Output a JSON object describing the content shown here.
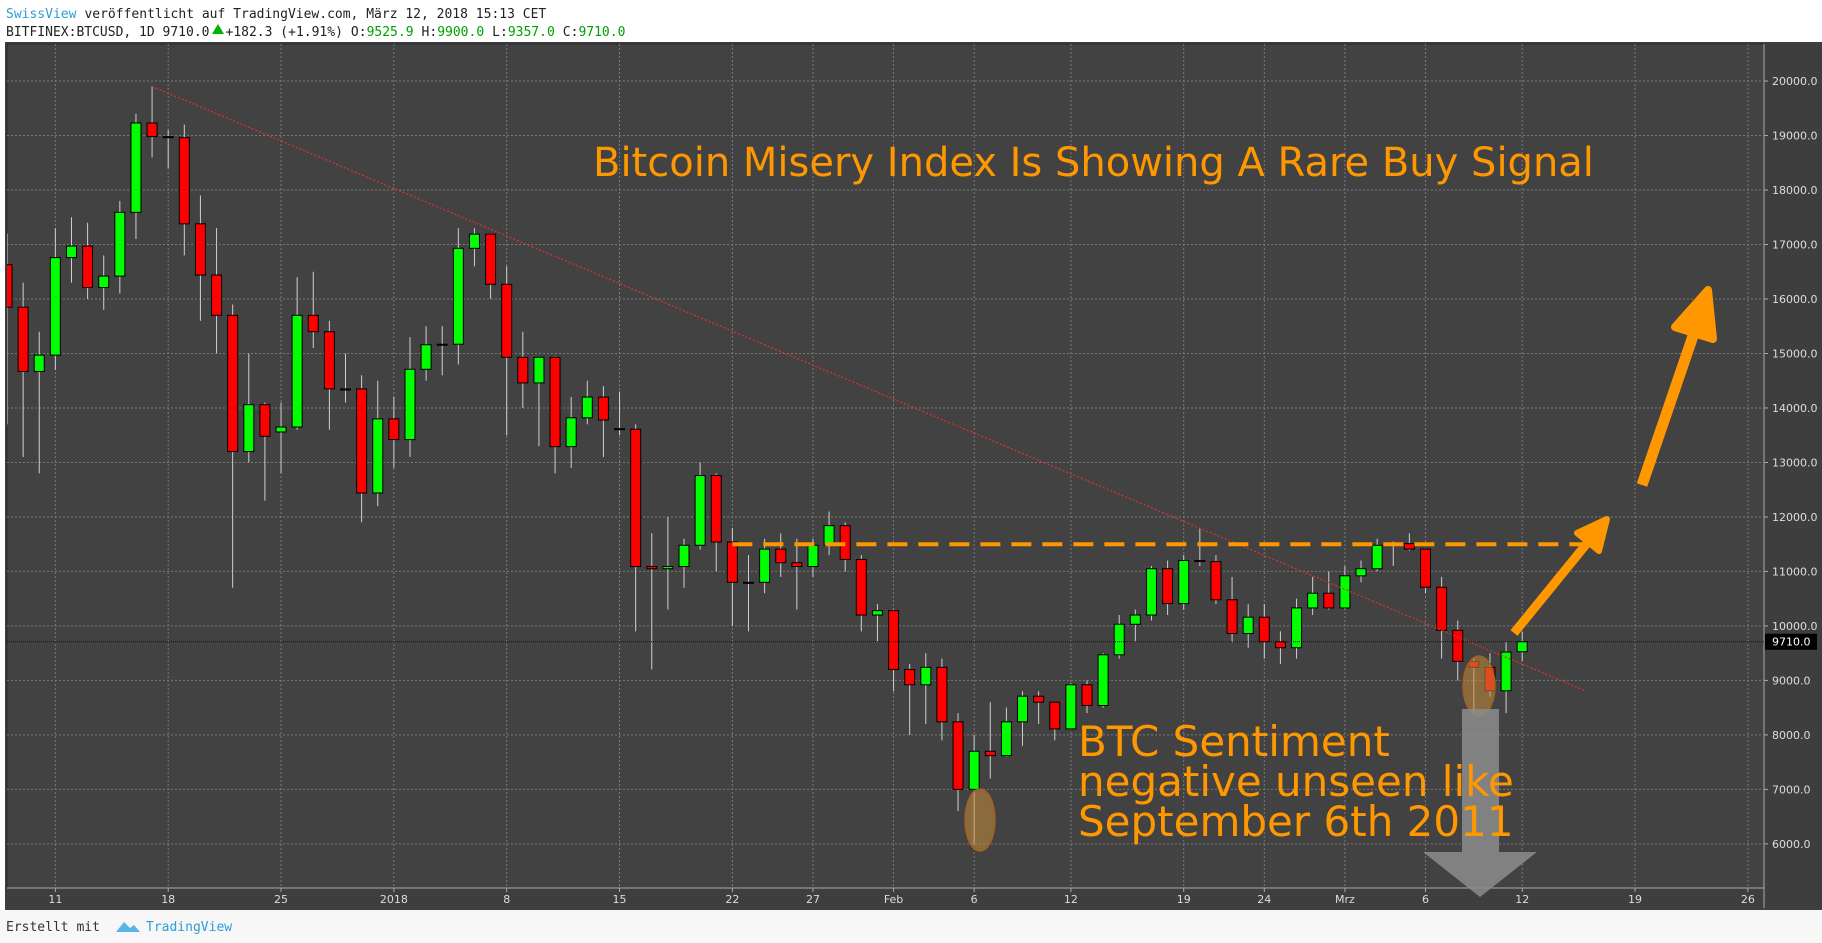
{
  "header": {
    "author": "SwissView",
    "published": "veröffentlicht auf TradingView.com, März 12, 2018 15:13 CET",
    "symbol": "BITFINEX:BTCUSD, 1D 9710.0",
    "change": "+182.3 (+1.91%)",
    "ohlc": [
      {
        "label": "O:",
        "value": "9525.9"
      },
      {
        "label": "H:",
        "value": "9900.0"
      },
      {
        "label": "L:",
        "value": "9357.0"
      },
      {
        "label": "C:",
        "value": "9710.0"
      }
    ]
  },
  "chart_data": {
    "type": "candlestick",
    "title": "Bitcoin Misery Index Is Showing A Rare Buy Signal",
    "annotation": [
      "BTC Sentiment",
      "negative unseen like",
      "September 6th 2011"
    ],
    "up_color": "#00ff00",
    "down_color": "#ff0000",
    "grid": true,
    "x": [
      "2017-12-08",
      "2017-12-09",
      "2017-12-10",
      "2017-12-11",
      "2017-12-12",
      "2017-12-13",
      "2017-12-14",
      "2017-12-15",
      "2017-12-16",
      "2017-12-17",
      "2017-12-18",
      "2017-12-19",
      "2017-12-20",
      "2017-12-21",
      "2017-12-22",
      "2017-12-23",
      "2017-12-24",
      "2017-12-25",
      "2017-12-26",
      "2017-12-27",
      "2017-12-28",
      "2017-12-29",
      "2017-12-30",
      "2017-12-31",
      "2018-01-01",
      "2018-01-02",
      "2018-01-03",
      "2018-01-04",
      "2018-01-05",
      "2018-01-06",
      "2018-01-07",
      "2018-01-08",
      "2018-01-09",
      "2018-01-10",
      "2018-01-11",
      "2018-01-12",
      "2018-01-13",
      "2018-01-14",
      "2018-01-15",
      "2018-01-16",
      "2018-01-17",
      "2018-01-18",
      "2018-01-19",
      "2018-01-20",
      "2018-01-21",
      "2018-01-22",
      "2018-01-23",
      "2018-01-24",
      "2018-01-25",
      "2018-01-26",
      "2018-01-27",
      "2018-01-28",
      "2018-01-29",
      "2018-01-30",
      "2018-01-31",
      "2018-02-01",
      "2018-02-02",
      "2018-02-03",
      "2018-02-04",
      "2018-02-05",
      "2018-02-06",
      "2018-02-07",
      "2018-02-08",
      "2018-02-09",
      "2018-02-10",
      "2018-02-11",
      "2018-02-12",
      "2018-02-13",
      "2018-02-14",
      "2018-02-15",
      "2018-02-16",
      "2018-02-17",
      "2018-02-18",
      "2018-02-19",
      "2018-02-20",
      "2018-02-21",
      "2018-02-22",
      "2018-02-23",
      "2018-02-24",
      "2018-02-25",
      "2018-02-26",
      "2018-02-27",
      "2018-02-28",
      "2018-03-01",
      "2018-03-02",
      "2018-03-03",
      "2018-03-04",
      "2018-03-05",
      "2018-03-06",
      "2018-03-07",
      "2018-03-08",
      "2018-03-09",
      "2018-03-10",
      "2018-03-11",
      "2018-03-12"
    ],
    "open": [
      16630,
      15850,
      14670,
      14970,
      16760,
      16970,
      16210,
      16420,
      17590,
      19230,
      18980,
      18960,
      17380,
      16440,
      15700,
      13200,
      14060,
      13560,
      13650,
      15700,
      15400,
      14350,
      14350,
      12440,
      13800,
      13420,
      14710,
      15160,
      15170,
      16930,
      17190,
      16270,
      14930,
      14460,
      14930,
      13290,
      13820,
      14200,
      13610,
      13610,
      11090,
      11050,
      11090,
      11480,
      12760,
      11540,
      10800,
      10800,
      11410,
      11160,
      11090,
      11480,
      11840,
      11220,
      10200,
      10280,
      9200,
      8920,
      9240,
      8240,
      7000,
      7700,
      7620,
      8240,
      8710,
      8600,
      8110,
      8920,
      8540,
      9470,
      10030,
      10200,
      11050,
      10410,
      11200,
      11180,
      10480,
      9860,
      10160,
      9710,
      9600,
      10330,
      10600,
      10330,
      10920,
      11050,
      11480,
      11510,
      11410,
      10710,
      9920,
      9350,
      9240,
      8810,
      9525.9
    ],
    "high": [
      17200,
      16300,
      15400,
      17300,
      17500,
      17400,
      16800,
      17800,
      19400,
      19900,
      19100,
      19200,
      17900,
      17300,
      15900,
      15000,
      14100,
      14100,
      16400,
      16500,
      15600,
      15000,
      14600,
      14500,
      14200,
      15300,
      15500,
      15500,
      17300,
      17300,
      17200,
      16600,
      15400,
      14900,
      14950,
      14200,
      14500,
      14400,
      14300,
      13700,
      11700,
      12000,
      11600,
      13000,
      12800,
      11800,
      11300,
      11600,
      11700,
      11600,
      11600,
      12100,
      11900,
      11300,
      10400,
      10300,
      9300,
      9500,
      9400,
      8400,
      8000,
      8600,
      8500,
      8800,
      8800,
      8600,
      8950,
      9000,
      9500,
      10200,
      10300,
      11100,
      11200,
      11300,
      11800,
      11300,
      10900,
      10400,
      10400,
      9900,
      10500,
      10900,
      11000,
      11100,
      11200,
      11600,
      11550,
      11700,
      11420,
      10900,
      10100,
      9400,
      9500,
      9700,
      9900
    ],
    "low": [
      13700,
      13100,
      12800,
      14700,
      16300,
      16000,
      15800,
      16100,
      17100,
      18600,
      18400,
      16800,
      15600,
      15000,
      10700,
      13000,
      12300,
      12800,
      13600,
      15100,
      13600,
      14100,
      11900,
      12200,
      12900,
      13100,
      14500,
      14600,
      14800,
      16600,
      16000,
      13500,
      14000,
      13300,
      12800,
      12900,
      13700,
      13100,
      13500,
      9900,
      9200,
      10300,
      10700,
      11400,
      11000,
      10000,
      9900,
      10600,
      10900,
      10300,
      10900,
      11300,
      11000,
      9900,
      9700,
      8800,
      8000,
      8200,
      7900,
      6600,
      6000,
      7200,
      7600,
      7800,
      8200,
      7900,
      8100,
      8400,
      8500,
      9400,
      9700,
      10100,
      10200,
      10300,
      11100,
      10400,
      9700,
      9600,
      9400,
      9300,
      9400,
      10200,
      10300,
      10300,
      10800,
      11000,
      11100,
      11380,
      10600,
      9400,
      9000,
      8400,
      8700,
      8400,
      9357
    ],
    "close": [
      15850,
      14670,
      14970,
      16760,
      16970,
      16210,
      16420,
      17590,
      19230,
      18980,
      18960,
      17380,
      16440,
      15700,
      13200,
      14060,
      13480,
      13650,
      15700,
      15400,
      14350,
      14330,
      12440,
      13800,
      13420,
      14710,
      15160,
      15170,
      16930,
      17190,
      16270,
      14930,
      14460,
      14930,
      13290,
      13820,
      14200,
      13780,
      13620,
      11090,
      11050,
      11090,
      11480,
      12760,
      11540,
      10800,
      10800,
      11410,
      11160,
      11090,
      11480,
      11840,
      11220,
      10200,
      10280,
      9200,
      8920,
      9240,
      8240,
      7000,
      7700,
      7620,
      8240,
      8710,
      8600,
      8110,
      8920,
      8540,
      9470,
      10030,
      10200,
      11050,
      10410,
      11200,
      11180,
      10480,
      9860,
      10160,
      9710,
      9600,
      10330,
      10600,
      10330,
      10920,
      11050,
      11480,
      11510,
      11410,
      10710,
      9920,
      9350,
      9240,
      8810,
      9520,
      9710
    ],
    "last_price": {
      "value": 9710,
      "label": "9710.0"
    },
    "trendline": {
      "from": [
        "2017-12-17",
        19900
      ],
      "to": [
        "2018-03-16",
        8800
      ]
    },
    "resistance": {
      "level": 11500,
      "from": "2018-01-22",
      "to": "2018-03-16"
    },
    "xlim": [
      "2017-12-08",
      "2018-03-27"
    ],
    "xticks": [
      {
        "value": "2017-12-11",
        "label": "11"
      },
      {
        "value": "2017-12-18",
        "label": "18"
      },
      {
        "value": "2017-12-25",
        "label": "25"
      },
      {
        "value": "2018-01-01",
        "label": "2018"
      },
      {
        "value": "2018-01-08",
        "label": "8"
      },
      {
        "value": "2018-01-15",
        "label": "15"
      },
      {
        "value": "2018-01-22",
        "label": "22"
      },
      {
        "value": "2018-01-27",
        "label": "27"
      },
      {
        "value": "2018-02-01",
        "label": "Feb"
      },
      {
        "value": "2018-02-06",
        "label": "6"
      },
      {
        "value": "2018-02-12",
        "label": "12"
      },
      {
        "value": "2018-02-19",
        "label": "19"
      },
      {
        "value": "2018-02-24",
        "label": "24"
      },
      {
        "value": "2018-03-01",
        "label": "Mrz"
      },
      {
        "value": "2018-03-06",
        "label": "6"
      },
      {
        "value": "2018-03-12",
        "label": "12"
      },
      {
        "value": "2018-03-19",
        "label": "19"
      },
      {
        "value": "2018-03-26",
        "label": "26"
      }
    ],
    "ylim": [
      5190,
      20680
    ],
    "yticks": [
      {
        "value": 6000,
        "label": "6000.0"
      },
      {
        "value": 7000,
        "label": "7000.0"
      },
      {
        "value": 8000,
        "label": "8000.0"
      },
      {
        "value": 9000,
        "label": "9000.0"
      },
      {
        "value": 10000,
        "label": "10000.0"
      },
      {
        "value": 11000,
        "label": "11000.0"
      },
      {
        "value": 12000,
        "label": "12000.0"
      },
      {
        "value": 13000,
        "label": "13000.0"
      },
      {
        "value": 14000,
        "label": "14000.0"
      },
      {
        "value": 15000,
        "label": "15000.0"
      },
      {
        "value": 16000,
        "label": "16000.0"
      },
      {
        "value": 17000,
        "label": "17000.0"
      },
      {
        "value": 18000,
        "label": "18000.0"
      },
      {
        "value": 19000,
        "label": "19000.0"
      },
      {
        "value": 20000,
        "label": "20000.0"
      }
    ]
  },
  "footer": {
    "text": "Erstellt mit",
    "brand": "TradingView"
  }
}
